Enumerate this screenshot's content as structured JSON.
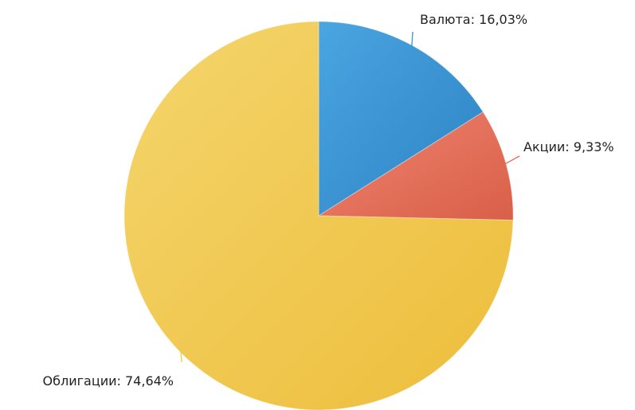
{
  "chart_data": {
    "type": "pie",
    "title": "",
    "slices": [
      {
        "label": "Валюта",
        "value": 16.03,
        "display": "Валюта: 16,03%",
        "color": "#3a93d2"
      },
      {
        "label": "Акции",
        "value": 9.33,
        "display": "Акции: 9,33%",
        "color": "#e46f5a"
      },
      {
        "label": "Облигации",
        "value": 74.64,
        "display": "Облигации: 74,64%",
        "color": "#f0c84a"
      }
    ],
    "start": "12 o'clock",
    "direction": "clockwise",
    "data_labels": "outside with leader lines"
  }
}
